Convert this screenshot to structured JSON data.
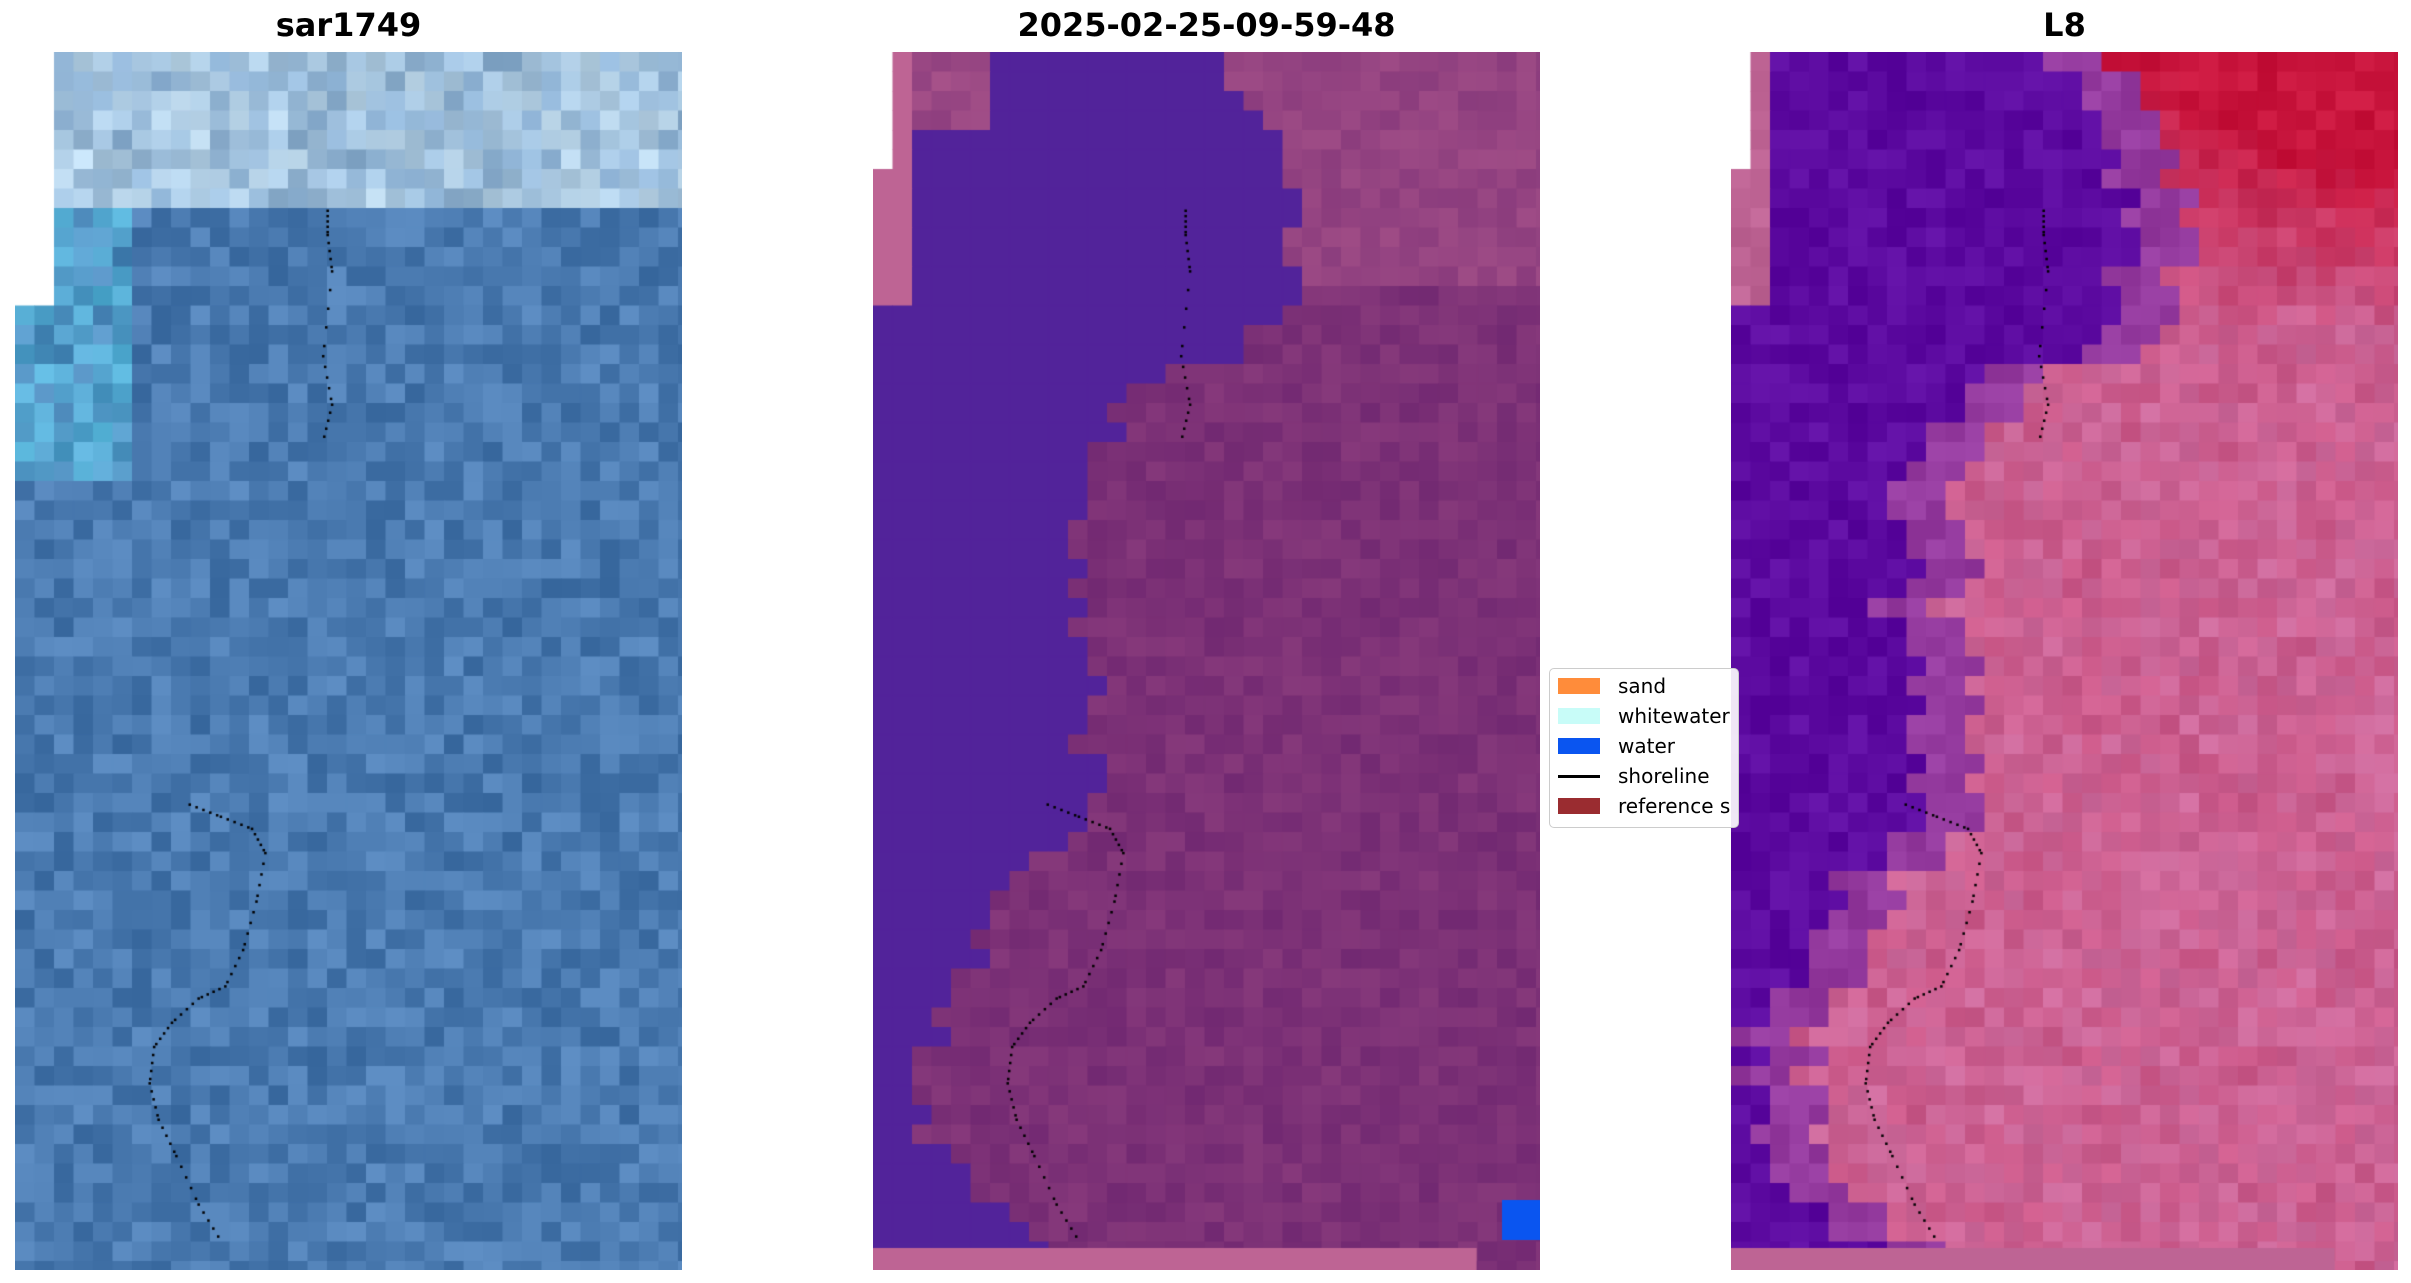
{
  "panels": [
    {
      "title": "sar1749",
      "image": "satellite RGB composite"
    },
    {
      "title": "2025-02-25-09-59-48",
      "image": "classified overlay"
    },
    {
      "title": "L8",
      "image": "false-colour composite"
    }
  ],
  "legend": {
    "items": [
      {
        "label": "sand",
        "color": "#ff8c3a"
      },
      {
        "label": "whitewater",
        "color": "#c8fcf8"
      },
      {
        "label": "water",
        "color": "#0a55f0"
      },
      {
        "label": "shoreline",
        "color": "#000000"
      },
      {
        "label": "reference s",
        "color": "#9a2c30"
      }
    ]
  },
  "colors": {
    "sat_water": "#4a7ab0",
    "sat_shallow": "#5cc8e8",
    "cls_water": "#52239a",
    "cls_land": "#6e2670",
    "cls_nodata": "#be6494",
    "l8_water": "#5c0aa0",
    "l8_land": "#cc6a9c",
    "l8_red": "#c8143c"
  }
}
